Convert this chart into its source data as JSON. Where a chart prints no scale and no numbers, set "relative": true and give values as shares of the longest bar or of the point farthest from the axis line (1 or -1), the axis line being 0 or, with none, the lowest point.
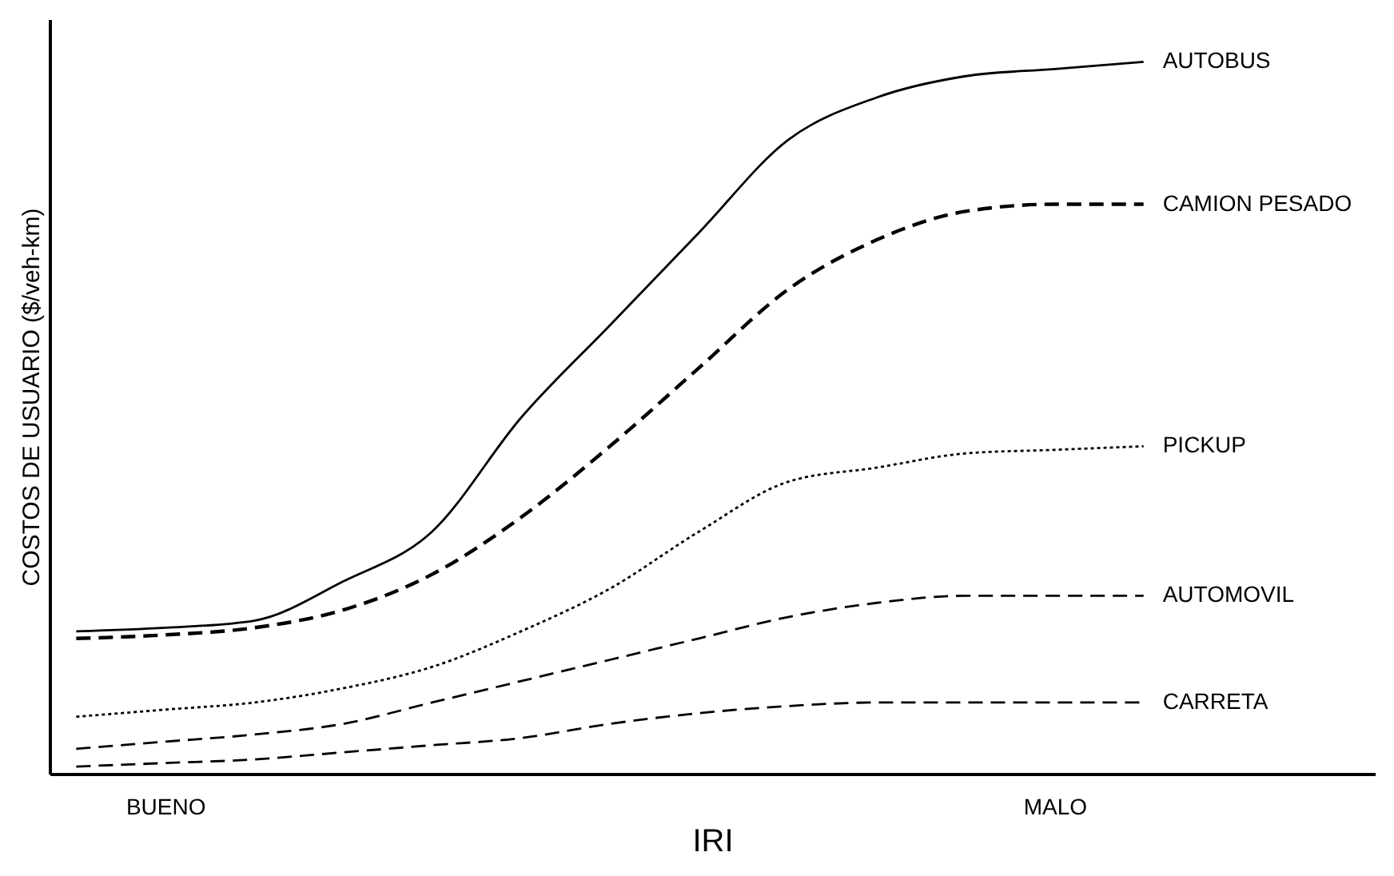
{
  "chart_data": {
    "type": "line",
    "relative": true,
    "xlabel": "IRI",
    "ylabel": "COSTOS DE USUARIO ($/veh-km)",
    "categories": [
      null,
      "BUENO",
      null,
      null,
      null,
      null,
      null,
      null,
      null,
      null,
      null,
      "MALO",
      null
    ],
    "tick_labels": "x",
    "grid": false,
    "marker": "none",
    "series": [
      {
        "name": "AUTOBUS",
        "color": "#000000",
        "line_style": "solid",
        "values": [
          0.2,
          0.205,
          0.215,
          0.27,
          0.34,
          0.5,
          0.63,
          0.76,
          0.89,
          0.95,
          0.98,
          0.99,
          1
        ]
      },
      {
        "name": "CAMION PESADO",
        "color": "#000000",
        "line_style": "dashed",
        "values": [
          0.19,
          0.195,
          0.205,
          0.23,
          0.28,
          0.36,
          0.46,
          0.57,
          0.68,
          0.75,
          0.79,
          0.8,
          0.8
        ]
      },
      {
        "name": "PICKUP",
        "color": "#000000",
        "line_style": "dotted",
        "values": [
          0.08,
          0.09,
          0.1,
          0.12,
          0.15,
          0.2,
          0.26,
          0.34,
          0.41,
          0.43,
          0.45,
          0.455,
          0.46
        ]
      },
      {
        "name": "AUTOMOVIL",
        "color": "#000000",
        "line_style": "dashed",
        "values": [
          0.035,
          0.045,
          0.055,
          0.07,
          0.1,
          0.13,
          0.16,
          0.19,
          0.22,
          0.24,
          0.25,
          0.25,
          0.25
        ]
      },
      {
        "name": "CARRETA",
        "color": "#000000",
        "line_style": "dashed",
        "values": [
          0.01,
          0.015,
          0.02,
          0.03,
          0.04,
          0.05,
          0.07,
          0.085,
          0.095,
          0.1,
          0.1,
          0.1,
          0.1
        ]
      }
    ]
  }
}
